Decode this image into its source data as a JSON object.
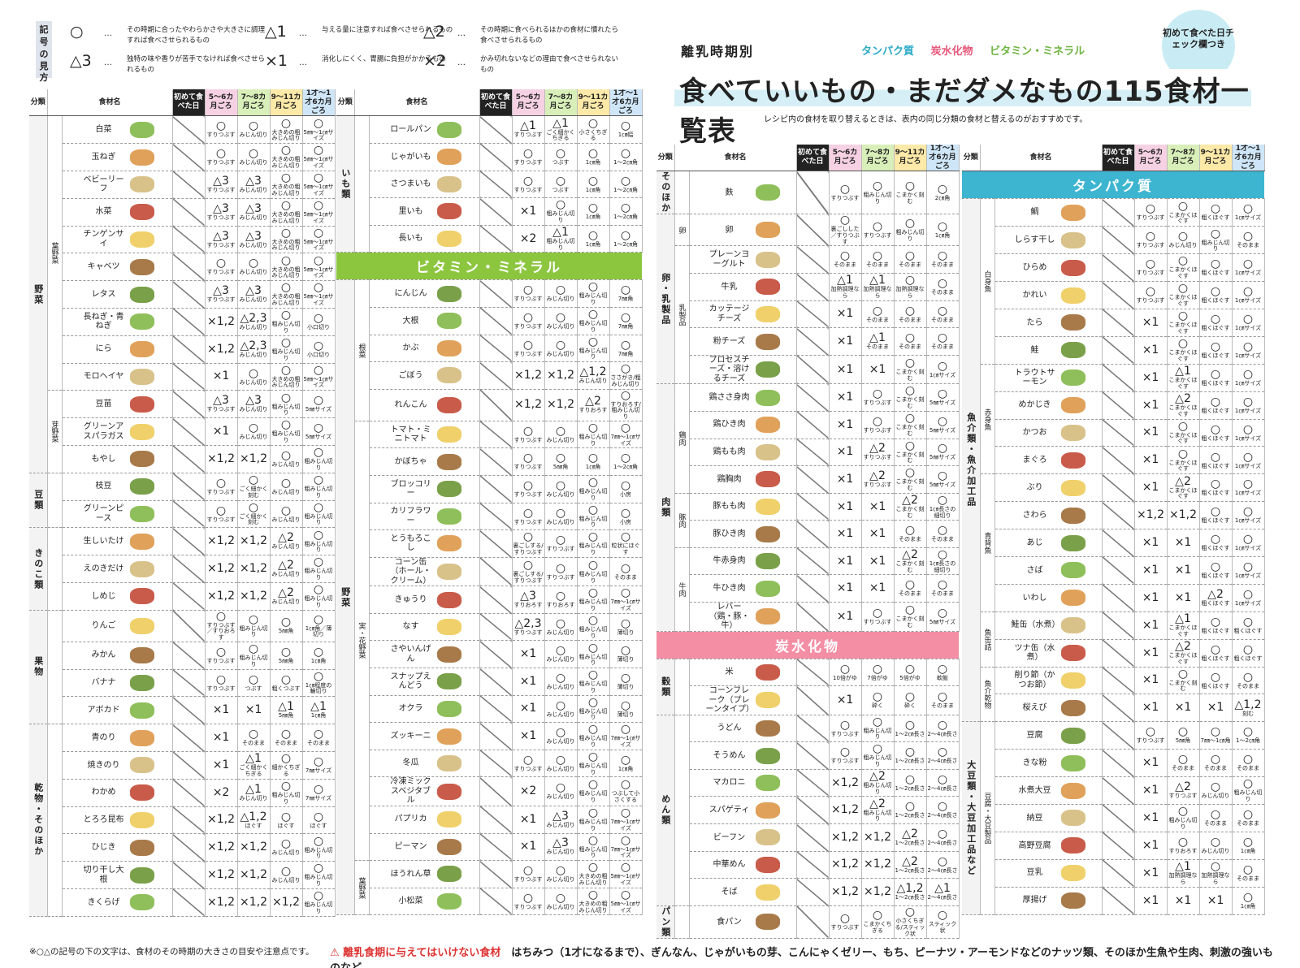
{
  "legend": {
    "title": "記号の見方",
    "items": [
      {
        "sym": "○",
        "desc": "その時期に合ったやわらかさや大きさに調理すれば食べさせられるもの"
      },
      {
        "sym": "△1",
        "desc": "与える量に注意すれば食べさせられるもの"
      },
      {
        "sym": "△2",
        "desc": "その時期に食べられるほかの食材に慣れたら食べさせられるもの"
      },
      {
        "sym": "△3",
        "desc": "独特の味や香りが苦手でなければ食べさせられるもの"
      },
      {
        "sym": "×1",
        "desc": "消化しにくく、胃腸に負担がかかるもの"
      },
      {
        "sym": "×2",
        "desc": "かみ切れないなどの理由で食べさせられないもの"
      }
    ]
  },
  "title": {
    "subtitle": "離乳時期別",
    "main": "食べていいもの・まだダメなもの115食材一覧表",
    "categories": [
      "タンパク質",
      "炭水化物",
      "ビタミン・ミネラル"
    ],
    "badge": "初めて食べた日チェック欄つき",
    "note": "レシピ内の食材を取り替えるときは、表内の同じ分類の食材と替えるのがおすすめです。"
  },
  "headers": {
    "cat": "分類",
    "name": "食材名",
    "first": "初めて食べた日",
    "s1": "5～6カ月ごろ",
    "s2": "7～8カ月ごろ",
    "s3": "9～11カ月ごろ",
    "s4": "1才～1才6カ月ごろ"
  },
  "sections": {
    "vitamin": "ビタミン・ミネラル",
    "carb": "炭水化物",
    "protein": "タンパク質"
  },
  "col1": [
    {
      "c": "野菜",
      "s": "葉野菜",
      "n": "白菜",
      "v": [
        "○|すりつぶす",
        "○|みじん切り",
        "○|大きめの粗みじん切り",
        "○|5㎜～1㎝サイズ"
      ]
    },
    {
      "n": "玉ねぎ",
      "v": [
        "○|すりつぶす",
        "○|みじん切り",
        "○|大きめの粗みじん切り",
        "○|5㎜～1㎝サイズ"
      ]
    },
    {
      "n": "ベビーリーフ",
      "v": [
        "△3|すりつぶす",
        "△3|みじん切り",
        "○|大きめの粗みじん切り",
        "○|5㎜～1㎝サイズ"
      ]
    },
    {
      "n": "水菜",
      "v": [
        "△3|すりつぶす",
        "△3|みじん切り",
        "○|大きめの粗みじん切り",
        "○|5㎜～1㎝サイズ"
      ]
    },
    {
      "n": "チンゲンサイ",
      "v": [
        "△3|すりつぶす",
        "△3|みじん切り",
        "○|大きめの粗みじん切り",
        "○|5㎜～1㎝サイズ"
      ]
    },
    {
      "n": "キャベツ",
      "v": [
        "○|すりつぶす",
        "○|みじん切り",
        "○|大きめの粗みじん切り",
        "○|5㎜～1㎝サイズ"
      ]
    },
    {
      "n": "レタス",
      "v": [
        "△3|すりつぶす",
        "△3|みじん切り",
        "○|大きめの粗みじん切り",
        "○|5㎜～1㎝サイズ"
      ]
    },
    {
      "n": "長ねぎ・青ねぎ",
      "v": [
        "×1,2|",
        "△2,3|みじん切り",
        "○|粗みじん切り",
        "○|小口切り"
      ]
    },
    {
      "n": "にら",
      "v": [
        "×1,2|",
        "△2,3|みじん切り",
        "○|粗みじん切り",
        "○|小口切り"
      ]
    },
    {
      "n": "モロヘイヤ",
      "v": [
        "×1|",
        "○|みじん切り",
        "○|大きめの粗みじん切り",
        "○|5㎜～1㎝サイズ"
      ]
    },
    {
      "s": "芽野菜",
      "n": "豆苗",
      "v": [
        "△3|すりつぶす",
        "△3|みじん切り",
        "○|粗みじん切り",
        "○|5㎜サイズ"
      ]
    },
    {
      "n": "グリーンアスパラガス",
      "v": [
        "×1|",
        "○|みじん切り",
        "○|粗みじん切り",
        "○|5㎜サイズ"
      ]
    },
    {
      "n": "もやし",
      "v": [
        "×1,2|",
        "×1,2|",
        "○|みじん切り",
        "○|粗みじん切り"
      ]
    },
    {
      "c": "豆類",
      "n": "枝豆",
      "v": [
        "○|すりつぶす",
        "○|ごく細かく刻む",
        "○|みじん切り",
        "○|粗みじん切り"
      ]
    },
    {
      "n": "グリーンピース",
      "v": [
        "○|すりつぶす",
        "○|ごく細かく刻む",
        "○|みじん切り",
        "○|粗みじん切り"
      ]
    },
    {
      "c": "きのこ類",
      "n": "生しいたけ",
      "v": [
        "×1,2|",
        "×1,2|",
        "△2|みじん切り",
        "○|粗みじん切り"
      ]
    },
    {
      "n": "えのきだけ",
      "v": [
        "×1,2|",
        "×1,2|",
        "△2|みじん切り",
        "○|粗みじん切り"
      ]
    },
    {
      "n": "しめじ",
      "v": [
        "×1,2|",
        "×1,2|",
        "△2|みじん切り",
        "○|粗みじん切り"
      ]
    },
    {
      "c": "果物",
      "n": "りんご",
      "v": [
        "○|すりつぶす／すりおろす",
        "○|粗みじん切り",
        "○|5㎜角",
        "○|1㎝角／薄切り"
      ]
    },
    {
      "n": "みかん",
      "v": [
        "○|すりつぶす",
        "○|粗みじん切り",
        "○|5㎜角",
        "○|1㎝角"
      ]
    },
    {
      "n": "バナナ",
      "v": [
        "○|すりつぶす",
        "○|つぶす",
        "○|粗くつぶす",
        "○|1㎝程度の輪切り"
      ]
    },
    {
      "n": "アボカド",
      "v": [
        "×1|",
        "×1|",
        "△1|5㎜角",
        "△1|1㎝角"
      ]
    },
    {
      "c": "乾物・そのほか",
      "n": "青のり",
      "v": [
        "×1|",
        "○|そのまま",
        "○|そのまま",
        "○|そのまま"
      ]
    },
    {
      "n": "焼きのり",
      "v": [
        "×1|",
        "△1|ごく細かくちぎる",
        "○|細かくちぎる",
        "○|7㎜サイズ"
      ]
    },
    {
      "n": "わかめ",
      "v": [
        "×2|",
        "△1|みじん切り",
        "○|粗みじん切り",
        "○|7㎜サイズ"
      ]
    },
    {
      "n": "とろろ昆布",
      "v": [
        "×1,2|",
        "△1,2|ほぐす",
        "○|ほぐす",
        "○|ほぐす"
      ]
    },
    {
      "n": "ひじき",
      "v": [
        "×1,2|",
        "×1,2|",
        "○|みじん切り",
        "○|粗みじん切り"
      ]
    },
    {
      "n": "切り干し大根",
      "v": [
        "×1,2|",
        "×1,2|",
        "○|みじん切り",
        "○|粗みじん切り"
      ]
    },
    {
      "n": "きくらげ",
      "v": [
        "×1,2|",
        "×1,2|",
        "×1,2|",
        "○|粗みじん切り"
      ]
    }
  ],
  "col2": [
    {
      "c": "いも類",
      "n": "ロールパン",
      "v": [
        "△1|すりつぶす",
        "△1|ごく細かくちぎる",
        "○|小さくちぎる",
        "○|1㎝幅"
      ]
    },
    {
      "n": "じゃがいも",
      "v": [
        "○|すりつぶす",
        "○|つぶす",
        "○|1㎝角",
        "○|1～2㎝角"
      ]
    },
    {
      "n": "さつまいも",
      "v": [
        "○|すりつぶす",
        "○|つぶす",
        "○|1㎝角",
        "○|1～2㎝角"
      ]
    },
    {
      "n": "里いも",
      "v": [
        "×1|",
        "○|粗みじん切り",
        "○|1㎝角",
        "○|1～2㎝角"
      ]
    },
    {
      "n": "長いも",
      "v": [
        "×2|",
        "△1|粗みじん切り",
        "○|1㎝角",
        "○|1～2㎝角"
      ]
    },
    {
      "sec": "vitamin"
    },
    {
      "c": "野菜",
      "s": "根菜",
      "n": "にんじん",
      "v": [
        "○|すりつぶす",
        "○|みじん切り",
        "○|粗みじん切り",
        "○|7㎜角"
      ]
    },
    {
      "n": "大根",
      "v": [
        "○|すりつぶす",
        "○|みじん切り",
        "○|粗みじん切り",
        "○|7㎜角"
      ]
    },
    {
      "n": "かぶ",
      "v": [
        "○|すりつぶす",
        "○|みじん切り",
        "○|粗みじん切り",
        "○|7㎜角"
      ]
    },
    {
      "n": "ごぼう",
      "v": [
        "×1,2|",
        "×1,2|",
        "△1,2|みじん切り",
        "○|ささがき/粗みじん切り"
      ]
    },
    {
      "n": "れんこん",
      "v": [
        "×1,2|",
        "×1,2|",
        "△2|すりおろす",
        "○|すりおろす/粗みじん切り"
      ]
    },
    {
      "s": "実・花野菜",
      "n": "トマト・ミニトマト",
      "v": [
        "○|すりつぶす",
        "○|みじん切り",
        "○|粗みじん切り",
        "○|7㎜～1㎝サイズ"
      ]
    },
    {
      "n": "かぼちゃ",
      "v": [
        "○|すりつぶす",
        "○|5㎜角",
        "○|1㎝角",
        "○|1～2㎝角"
      ]
    },
    {
      "n": "ブロッコリー",
      "v": [
        "○|すりつぶす",
        "○|みじん切り",
        "○|粗みじん切り",
        "○|小房"
      ]
    },
    {
      "n": "カリフラワー",
      "v": [
        "○|すりつぶす",
        "○|みじん切り",
        "○|粗みじん切り",
        "○|小房"
      ]
    },
    {
      "n": "とうもろこし",
      "v": [
        "○|裏ごしする/すりつぶす",
        "○|すりつぶす",
        "○|粗みじん切り",
        "○|粒状にほぐす"
      ]
    },
    {
      "n": "コーン缶（ホール・クリーム）",
      "v": [
        "○|裏ごしする/すりつぶす",
        "○|すりつぶす",
        "○|粗みじん切り",
        "○|そのまま"
      ]
    },
    {
      "n": "きゅうり",
      "v": [
        "△3|すりおろす",
        "○|すりおろす",
        "○|粗みじん切り",
        "○|7㎜～1㎝サイズ"
      ]
    },
    {
      "n": "なす",
      "v": [
        "△2,3|すりつぶす",
        "○|みじん切り",
        "○|粗みじん切り",
        "○|薄切り"
      ]
    },
    {
      "n": "さやいんげん",
      "v": [
        "×1|",
        "○|みじん切り",
        "○|粗みじん切り",
        "○|薄切り"
      ]
    },
    {
      "n": "スナップえんどう",
      "v": [
        "×1|",
        "○|みじん切り",
        "○|粗みじん切り",
        "○|薄切り"
      ]
    },
    {
      "n": "オクラ",
      "v": [
        "×1|",
        "○|みじん切り",
        "○|粗みじん切り",
        "○|薄切り"
      ]
    },
    {
      "n": "ズッキーニ",
      "v": [
        "×1|",
        "○|みじん切り",
        "○|粗みじん切り",
        "○|7㎜～1㎝サイズ"
      ]
    },
    {
      "n": "冬瓜",
      "v": [
        "○|すりつぶす",
        "○|みじん切り",
        "○|粗みじん切り",
        "○|1㎝角"
      ]
    },
    {
      "n": "冷凍ミックスベジタブル",
      "v": [
        "×2|",
        "○|みじん切り",
        "○|粗みじん切り",
        "○|つぶして小さくする"
      ]
    },
    {
      "n": "パプリカ",
      "v": [
        "×1|",
        "△3|みじん切り",
        "○|粗みじん切り",
        "○|7㎜～1㎝サイズ"
      ]
    },
    {
      "n": "ピーマン",
      "v": [
        "×1|",
        "△3|みじん切り",
        "○|粗みじん切り",
        "○|7㎜～1㎝サイズ"
      ]
    },
    {
      "s": "葉野菜",
      "n": "ほうれん草",
      "v": [
        "○|すりつぶす",
        "○|みじん切り",
        "○|大きめの粗みじん切り",
        "○|5㎜～1㎝サイズ"
      ]
    },
    {
      "n": "小松菜",
      "v": [
        "○|すりつぶす",
        "○|みじん切り",
        "○|大きめの粗みじん切り",
        "○|5㎜～1㎝サイズ"
      ]
    }
  ],
  "col3": [
    {
      "c": "そのほか",
      "n": "麩",
      "v": [
        "○|すりつぶす",
        "○|粗みじん切り",
        "○|こまかく刻む",
        "○|2㎝角"
      ]
    },
    {
      "c": "卵・乳製品",
      "s": "卵",
      "n": "卵",
      "v": [
        "○|裏ごしした／すりつぶす",
        "○|すりつぶす",
        "○|粗みじん切り",
        "○|1㎝角"
      ]
    },
    {
      "s": "乳製品",
      "n": "プレーンヨーグルト",
      "v": [
        "○|そのまま",
        "○|そのまま",
        "○|そのまま",
        "○|そのまま"
      ]
    },
    {
      "n": "牛乳",
      "v": [
        "△1|加熱調理なら",
        "△1|加熱調理なら",
        "○|加熱調理なら",
        "○|そのまま"
      ]
    },
    {
      "n": "カッテージチーズ",
      "v": [
        "×1|",
        "○|そのまま",
        "○|そのまま",
        "○|そのまま"
      ]
    },
    {
      "n": "粉チーズ",
      "v": [
        "×1|",
        "△1|そのまま",
        "○|そのまま",
        "○|そのまま"
      ]
    },
    {
      "n": "プロセスチーズ・溶けるチーズ",
      "v": [
        "×1|",
        "×1|",
        "○|こまかく刻む",
        "○|1㎝サイズ"
      ]
    },
    {
      "c": "肉類",
      "s": "鶏肉",
      "n": "鶏ささ身肉",
      "v": [
        "×1|",
        "○|すりつぶす",
        "○|こまかく刻む",
        "○|5㎜サイズ"
      ]
    },
    {
      "n": "鶏ひき肉",
      "v": [
        "×1|",
        "○|すりつぶす",
        "○|こまかく刻む",
        "○|5㎜サイズ"
      ]
    },
    {
      "n": "鶏もも肉",
      "v": [
        "×1|",
        "△2|すりつぶす",
        "○|こまかく刻む",
        "○|5㎜サイズ"
      ]
    },
    {
      "n": "鶏胸肉",
      "v": [
        "×1|",
        "△2|すりつぶす",
        "○|こまかく刻む",
        "○|5㎜サイズ"
      ]
    },
    {
      "s": "豚肉",
      "n": "豚もも肉",
      "v": [
        "×1|",
        "×1|",
        "△2|こまかく刻む",
        "○|1㎝長さの細切り"
      ]
    },
    {
      "n": "豚ひき肉",
      "v": [
        "×1|",
        "×1|",
        "○|そのまま",
        "○|そのまま"
      ]
    },
    {
      "s": "牛肉",
      "n": "牛赤身肉",
      "v": [
        "×1|",
        "×1|",
        "△2|こまかく刻む",
        "○|1㎝長さの細切り"
      ]
    },
    {
      "n": "牛ひき肉",
      "v": [
        "×1|",
        "×1|",
        "○|そのまま",
        "○|そのまま"
      ]
    },
    {
      "n": "レバー（鶏・豚・牛）",
      "v": [
        "×1|",
        "○|すりつぶす",
        "○|こまかく刻む",
        "○|5㎜サイズ"
      ]
    },
    {
      "sec": "carb"
    },
    {
      "c": "穀類",
      "n": "米",
      "v": [
        "○|10倍がゆ",
        "○|7倍がゆ",
        "○|5倍がゆ",
        "○|軟飯"
      ]
    },
    {
      "n": "コーンフレーク（プレーンタイプ）",
      "v": [
        "×1|",
        "○|砕く",
        "○|砕く",
        "○|そのまま"
      ]
    },
    {
      "c": "めん類",
      "n": "うどん",
      "v": [
        "○|すりつぶす",
        "○|粗みじん切り",
        "○|1～2㎝長さ",
        "○|2～4㎝長さ"
      ]
    },
    {
      "n": "そうめん",
      "v": [
        "○|すりつぶす",
        "○|粗みじん切り",
        "○|1～2㎝長さ",
        "○|2～4㎝長さ"
      ]
    },
    {
      "n": "マカロニ",
      "v": [
        "×1,2|",
        "△2|粗みじん切り",
        "○|1～2㎝長さ",
        "○|2～4㎝長さ"
      ]
    },
    {
      "n": "スパゲティ",
      "v": [
        "×1,2|",
        "△2|粗みじん切り",
        "○|1～2㎝長さ",
        "○|2～4㎝長さ"
      ]
    },
    {
      "n": "ビーフン",
      "v": [
        "×1,2|",
        "×1,2|",
        "△2|1～2㎝長さ",
        "○|2～4㎝長さ"
      ]
    },
    {
      "n": "中華めん",
      "v": [
        "×1,2|",
        "×1,2|",
        "△2|1～2㎝長さ",
        "○|2～4㎝長さ"
      ]
    },
    {
      "n": "そば",
      "v": [
        "×1,2|",
        "×1,2|",
        "△1,2|1～2㎝長さ",
        "△1|2～4㎝長さ"
      ]
    },
    {
      "c": "パン類",
      "n": "食パン",
      "v": [
        "○|すりつぶす",
        "○|こまかくちぎる",
        "○|小さくちぎる/スティック状",
        "○|スティック状"
      ]
    }
  ],
  "col4": [
    {
      "sec": "protein"
    },
    {
      "c": "魚介類・魚介加工品",
      "s": "白身魚",
      "n": "鯛",
      "v": [
        "○|すりつぶす",
        "○|こまかくほぐす",
        "○|粗くほぐす",
        "○|1㎝サイズ"
      ]
    },
    {
      "n": "しらす干し",
      "v": [
        "○|すりつぶす",
        "○|みじん切り",
        "○|粗みじん切り",
        "○|そのまま"
      ]
    },
    {
      "n": "ひらめ",
      "v": [
        "○|すりつぶす",
        "○|こまかくほぐす",
        "○|粗くほぐす",
        "○|1㎝サイズ"
      ]
    },
    {
      "n": "かれい",
      "v": [
        "○|すりつぶす",
        "○|こまかくほぐす",
        "○|粗くほぐす",
        "○|1㎝サイズ"
      ]
    },
    {
      "n": "たら",
      "v": [
        "×1|",
        "○|こまかくほぐす",
        "○|粗くほぐす",
        "○|1㎝サイズ"
      ]
    },
    {
      "n": "鮭",
      "v": [
        "×1|",
        "○|こまかくほぐす",
        "○|粗くほぐす",
        "○|1㎝サイズ"
      ]
    },
    {
      "s": "赤身魚",
      "n": "トラウトサーモン",
      "v": [
        "×1|",
        "△1|こまかくほぐす",
        "○|粗くほぐす",
        "○|1㎝サイズ"
      ]
    },
    {
      "n": "めかじき",
      "v": [
        "×1|",
        "△2|こまかくほぐす",
        "○|粗くほぐす",
        "○|1㎝サイズ"
      ]
    },
    {
      "n": "かつお",
      "v": [
        "×1|",
        "○|こまかくほぐす",
        "○|粗くほぐす",
        "○|1㎝サイズ"
      ]
    },
    {
      "n": "まぐろ",
      "v": [
        "×1|",
        "○|こまかくほぐす",
        "○|粗くほぐす",
        "○|1㎝サイズ"
      ]
    },
    {
      "s": "青背魚",
      "n": "ぶり",
      "v": [
        "×1|",
        "△2|こまかくほぐす",
        "○|粗くほぐす",
        "○|1㎝サイズ"
      ]
    },
    {
      "n": "さわら",
      "v": [
        "×1,2|",
        "×1,2|",
        "○|粗くほぐす",
        "○|1㎝サイズ"
      ]
    },
    {
      "n": "あじ",
      "v": [
        "×1|",
        "×1|",
        "○|粗くほぐす",
        "○|1㎝サイズ"
      ]
    },
    {
      "n": "さば",
      "v": [
        "×1|",
        "×1|",
        "○|粗くほぐす",
        "○|1㎝サイズ"
      ]
    },
    {
      "n": "いわし",
      "v": [
        "×1|",
        "×1|",
        "△2|粗くほぐす",
        "○|1㎝サイズ"
      ]
    },
    {
      "s": "魚缶詰",
      "n": "鮭缶（水煮）",
      "v": [
        "×1|",
        "△1|こまかくほぐす",
        "○|粗くほぐす",
        "○|粗くほぐす"
      ]
    },
    {
      "n": "ツナ缶（水煮）",
      "v": [
        "×1|",
        "△2|こまかくほぐす",
        "○|粗くほぐす",
        "○|粗くほぐす"
      ]
    },
    {
      "s": "魚介乾物",
      "n": "削り節（かつお節）",
      "v": [
        "×1|",
        "○|こまかく刻む",
        "○|粗くほぐす",
        "○|そのまま"
      ]
    },
    {
      "n": "桜えび",
      "v": [
        "×1|",
        "×1|",
        "×1|",
        "△1,2|刻む"
      ]
    },
    {
      "c": "大豆類・大豆加工品など",
      "s": "豆腐・大豆製品",
      "n": "豆腐",
      "v": [
        "○|すりつぶす",
        "○|5㎜角",
        "○|7㎜～1㎝角",
        "○|1～2㎝角"
      ]
    },
    {
      "n": "きな粉",
      "v": [
        "×1|",
        "○|そのまま",
        "○|そのまま",
        "○|そのまま"
      ]
    },
    {
      "n": "水煮大豆",
      "v": [
        "×1|",
        "△2|すりつぶす",
        "○|みじん切り",
        "○|粗みじん切り"
      ]
    },
    {
      "n": "納豆",
      "v": [
        "×1|",
        "○|粗みじん切り",
        "○|そのまま",
        "○|そのまま"
      ]
    },
    {
      "n": "高野豆腐",
      "v": [
        "×1|",
        "○|すりおろす",
        "○|みじん切り",
        "○|1㎝角"
      ]
    },
    {
      "n": "豆乳",
      "v": [
        "×1|",
        "△1|加熱調理なら",
        "○|加熱調理なら",
        "○|そのまま"
      ]
    },
    {
      "n": "厚揚げ",
      "v": [
        "×1|",
        "×1|",
        "×1|",
        "○|1㎝角"
      ]
    }
  ],
  "footer": {
    "note": "※○△の記号の下の文字は、食材のその時期の大きさの目安や注意点です。",
    "warn_label": "⚠ 離乳食期に与えてはいけない食材",
    "warn_text": "はちみつ（1才になるまで）、ぎんなん、じゃがいもの芽、こんにゃくゼリー、もち、ピーナツ・アーモンドなどのナッツ類、そのほか生魚や生肉、刺激の強いものなど"
  },
  "colors": {
    "veg": "#dcefc2",
    "vegDark": "#8cc63f",
    "carb": "#f38ea5",
    "carbLight": "#fbdce4",
    "protein": "#3db5d0",
    "proteinLight": "#d5eef5",
    "cat": "#f3f3f3"
  }
}
